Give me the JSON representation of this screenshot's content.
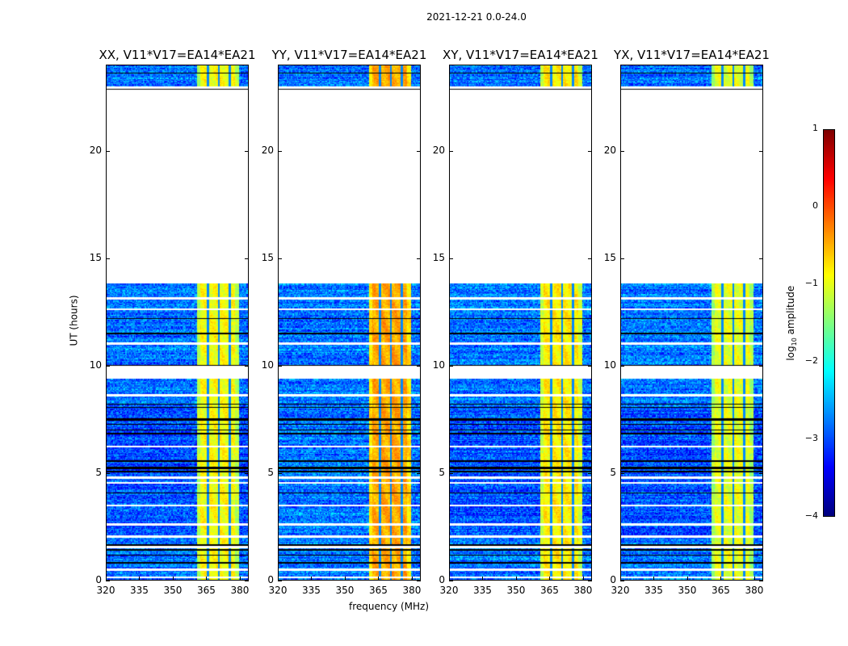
{
  "chart_data": {
    "type": "heatmap",
    "title": "2021-12-21 0.0-24.0",
    "xlabel": "frequency (MHz)",
    "ylabel": "UT (hours)",
    "xlim": [
      320,
      384
    ],
    "ylim": [
      0,
      24
    ],
    "xticks": [
      "320",
      "335",
      "350",
      "365",
      "380"
    ],
    "yticks": [
      "0",
      "5",
      "10",
      "15",
      "20"
    ],
    "colorbar": {
      "label": "log10 amplitude",
      "label_main": "log",
      "label_sub": "10",
      "label_rest": " amplitude",
      "range": [
        -4,
        1
      ],
      "ticks": [
        "1",
        "0",
        "−1",
        "−2",
        "−3",
        "−4"
      ],
      "colormap": "jet"
    },
    "no_data_hours": [
      [
        13.8,
        23.0
      ],
      [
        9.35,
        9.95
      ]
    ],
    "flagged_white_hours": [
      0.1,
      0.45,
      1.5,
      2.0,
      2.55,
      3.45,
      4.5,
      4.75,
      6.2,
      8.6,
      11.0,
      12.6,
      13.1
    ],
    "flagged_black_hours": [
      0.8,
      1.15,
      1.35,
      1.6,
      3.3,
      4.0,
      5.05,
      5.2,
      5.35,
      5.5,
      6.0,
      6.8,
      7.0,
      7.2,
      7.45,
      7.6,
      8.0,
      8.2,
      9.0,
      10.0,
      11.5,
      12.2,
      22.9,
      23.6
    ],
    "background_log_amplitude": -3.0,
    "band_mhz": [
      361,
      380
    ],
    "band_gap_channels_mhz": [
      366,
      371,
      376
    ],
    "panels": [
      {
        "title": "XX, V11*V17=EA14*EA21",
        "band_log_amplitude": -0.9
      },
      {
        "title": "YY, V11*V17=EA14*EA21",
        "band_log_amplitude": -0.45
      },
      {
        "title": "XY, V11*V17=EA14*EA21",
        "band_log_amplitude": -0.8
      },
      {
        "title": "YX, V11*V17=EA14*EA21",
        "band_log_amplitude": -1.0
      }
    ]
  }
}
